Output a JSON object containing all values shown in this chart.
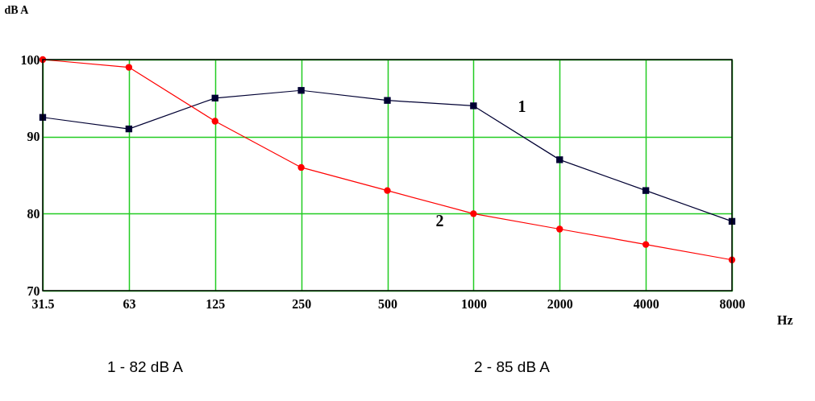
{
  "chart_data": {
    "type": "line",
    "ylabel": "dB A",
    "xlabel": "Hz",
    "categories": [
      "31.5",
      "63",
      "125",
      "250",
      "500",
      "1000",
      "2000",
      "4000",
      "8000"
    ],
    "ylim": [
      70,
      100
    ],
    "yticks": [
      70,
      80,
      90,
      100
    ],
    "grid": true,
    "series": [
      {
        "name": "1",
        "color": "#000033",
        "marker": "square",
        "values": [
          92.5,
          91,
          95,
          96,
          94.7,
          94,
          87,
          83,
          79
        ]
      },
      {
        "name": "2",
        "color": "#ff0000",
        "marker": "circle",
        "values": [
          100,
          99,
          92,
          86,
          83,
          80,
          78,
          76,
          74
        ]
      }
    ],
    "annotations": [
      "1 - 82 dB A",
      "2 - 85 dB A"
    ]
  }
}
